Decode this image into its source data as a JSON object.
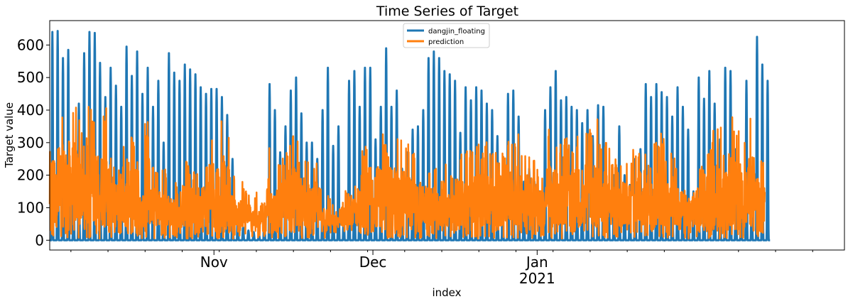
{
  "chart_data": {
    "type": "line",
    "title": "Time Series of Target",
    "xlabel": "index",
    "ylabel": "Target value",
    "x_range": [
      "2020-10-01",
      "2021-02-28"
    ],
    "ylim": [
      -30,
      675
    ],
    "y_ticks": [
      0,
      100,
      200,
      300,
      400,
      500,
      600
    ],
    "x_ticks": [
      {
        "date": "2020-11-01",
        "label": "Nov",
        "sublabel": ""
      },
      {
        "date": "2020-12-01",
        "label": "Dec",
        "sublabel": ""
      },
      {
        "date": "2021-01-01",
        "label": "Jan",
        "sublabel": "2021"
      }
    ],
    "legend": {
      "position": "top-center",
      "entries": [
        "dangjin_floating",
        "prediction"
      ]
    },
    "series": [
      {
        "name": "dangjin_floating",
        "color": "#1f77b4",
        "resolution": "hourly",
        "pattern": "daily solar cycle; 0 at night, one peak per day near midday",
        "daily_peaks": [
          640,
          643,
          560,
          585,
          215,
          420,
          575,
          640,
          637,
          545,
          440,
          530,
          475,
          410,
          595,
          505,
          580,
          450,
          530,
          410,
          490,
          300,
          575,
          515,
          490,
          540,
          525,
          510,
          470,
          450,
          465,
          465,
          440,
          385,
          250,
          80,
          40,
          30,
          25,
          20,
          80,
          480,
          400,
          270,
          350,
          460,
          500,
          390,
          300,
          300,
          250,
          400,
          530,
          290,
          350,
          80,
          490,
          520,
          410,
          530,
          530,
          310,
          410,
          590,
          410,
          460,
          220,
          270,
          340,
          350,
          400,
          560,
          580,
          560,
          520,
          510,
          490,
          330,
          470,
          430,
          470,
          460,
          420,
          400,
          320,
          200,
          450,
          460,
          380,
          180,
          220,
          180,
          150,
          400,
          470,
          520,
          430,
          440,
          410,
          400,
          360,
          400,
          320,
          415,
          410,
          130,
          200,
          350,
          200,
          170,
          250,
          280,
          480,
          440,
          480,
          455,
          440,
          380,
          470,
          410,
          340,
          150,
          500,
          435,
          520,
          420,
          310,
          530,
          520,
          280,
          140,
          490,
          190,
          625,
          540,
          490
        ]
      },
      {
        "name": "prediction",
        "color": "#ff7f0e",
        "resolution": "hourly",
        "pattern": "noisy estimate, mostly 0-440; typical band 50-250",
        "approx_daily_max": [
          390,
          300,
          420,
          440,
          430,
          410,
          330,
          420,
          410,
          380,
          420,
          360,
          250,
          330,
          270,
          320,
          250,
          200,
          370,
          230,
          220,
          220,
          200,
          190,
          150,
          250,
          230,
          300,
          250,
          250,
          360,
          350,
          380,
          330,
          200,
          170,
          180,
          160,
          140,
          150,
          120,
          300,
          220,
          250,
          270,
          330,
          330,
          280,
          250,
          230,
          260,
          160,
          140,
          110,
          100,
          170,
          150,
          180,
          230,
          300,
          320,
          330,
          330,
          300,
          320,
          330,
          310,
          300,
          280,
          260,
          240,
          230,
          230,
          210,
          260,
          220,
          200,
          270,
          280,
          280,
          300,
          290,
          330,
          280,
          270,
          290,
          330,
          310,
          330,
          280,
          300,
          260,
          220,
          240,
          370,
          310,
          300,
          320,
          300,
          320,
          250,
          340,
          340,
          420,
          300,
          300,
          250,
          230,
          270,
          250,
          290,
          300,
          310,
          250,
          300,
          330,
          250,
          280,
          240,
          220,
          200,
          210,
          230,
          230,
          300,
          340,
          350,
          300,
          380,
          350,
          340,
          320,
          380,
          300,
          260
        ]
      }
    ]
  }
}
